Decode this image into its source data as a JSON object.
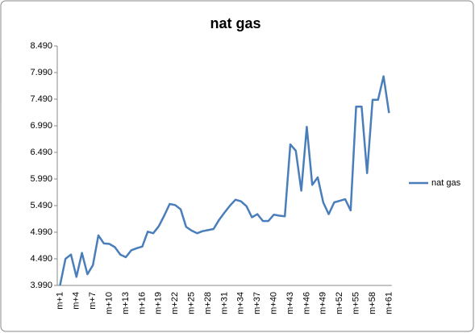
{
  "chart_data": {
    "type": "line",
    "title": "nat gas",
    "categories": [
      "m+1",
      null,
      null,
      "m+4",
      null,
      null,
      "m+7",
      null,
      null,
      "m+10",
      null,
      null,
      "m+13",
      null,
      null,
      "m+16",
      null,
      null,
      "m+19",
      null,
      null,
      "m+22",
      null,
      null,
      "m+25",
      null,
      null,
      "m+28",
      null,
      null,
      "m+31",
      null,
      null,
      "m+34",
      null,
      null,
      "m+37",
      null,
      null,
      "m+40",
      null,
      null,
      "m+43",
      null,
      null,
      "m+46",
      null,
      null,
      "m+49",
      null,
      null,
      "m+52",
      null,
      null,
      "m+55",
      null,
      null,
      "m+58",
      null,
      null,
      "m+61"
    ],
    "series": [
      {
        "name": "nat gas",
        "color": "#4a7ebb",
        "values": [
          3.99,
          4.49,
          4.57,
          4.15,
          4.6,
          4.2,
          4.37,
          4.93,
          4.78,
          4.77,
          4.71,
          4.57,
          4.52,
          4.65,
          4.69,
          4.72,
          5.0,
          4.97,
          5.1,
          5.3,
          5.52,
          5.5,
          5.42,
          5.09,
          5.02,
          4.97,
          5.01,
          5.03,
          5.05,
          5.22,
          5.36,
          5.49,
          5.6,
          5.57,
          5.48,
          5.27,
          5.33,
          5.2,
          5.2,
          5.32,
          5.3,
          5.29,
          6.64,
          6.52,
          5.77,
          6.97,
          5.88,
          6.02,
          5.55,
          5.33,
          5.55,
          5.58,
          5.61,
          5.4,
          7.35,
          7.35,
          6.1,
          7.48,
          7.48,
          7.92,
          7.23
        ]
      }
    ],
    "ylim": [
      3.99,
      8.49
    ],
    "yticks": [
      {
        "value": 3.99,
        "label": "3.990"
      },
      {
        "value": 4.49,
        "label": "4.490"
      },
      {
        "value": 4.99,
        "label": "4.990"
      },
      {
        "value": 5.49,
        "label": "5.490"
      },
      {
        "value": 5.99,
        "label": "5.990"
      },
      {
        "value": 6.49,
        "label": "6.490"
      },
      {
        "value": 6.99,
        "label": "6.990"
      },
      {
        "value": 7.49,
        "label": "7.490"
      },
      {
        "value": 7.99,
        "label": "7.990"
      },
      {
        "value": 8.49,
        "label": "8.490"
      }
    ],
    "grid": false,
    "legend": "right"
  }
}
